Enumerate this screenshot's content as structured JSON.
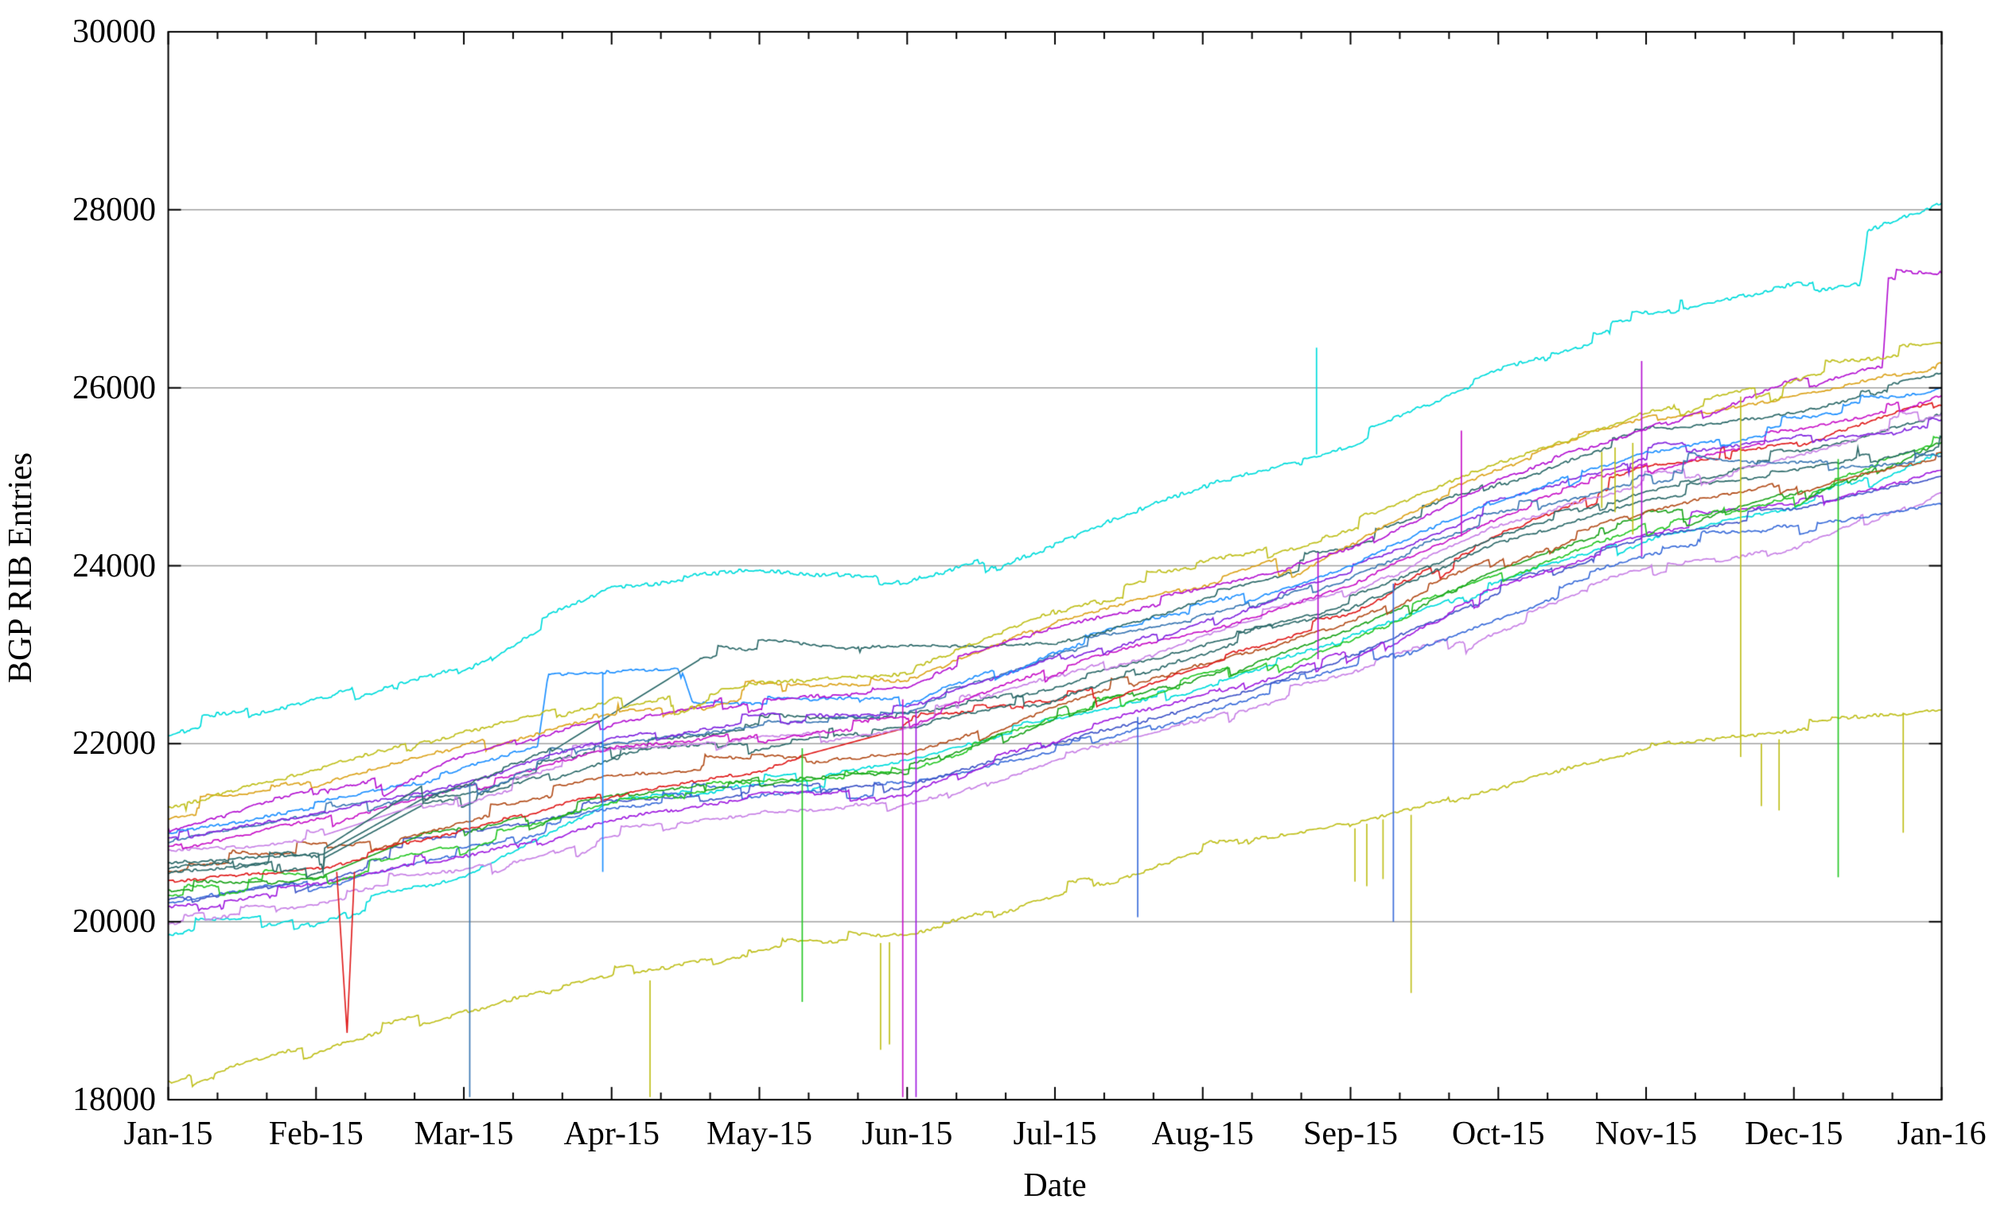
{
  "page": {
    "background": "#ffffff"
  },
  "chart_data": {
    "type": "line",
    "title": "",
    "xlabel": "Date",
    "ylabel": "BGP RIB Entries",
    "x_tick_labels": [
      "Jan-15",
      "Feb-15",
      "Mar-15",
      "Apr-15",
      "May-15",
      "Jun-15",
      "Jul-15",
      "Aug-15",
      "Sep-15",
      "Oct-15",
      "Nov-15",
      "Dec-15",
      "Jan-16"
    ],
    "y_tick_labels": [
      "18000",
      "20000",
      "22000",
      "24000",
      "26000",
      "28000",
      "30000"
    ],
    "y_tick_values": [
      18000,
      20000,
      22000,
      24000,
      26000,
      28000,
      30000
    ],
    "ylim": [
      18000,
      30000
    ],
    "xlim_months": [
      0,
      12
    ],
    "x_minor_ticks_per_month": 3,
    "grid": "horizontal",
    "grid_color": "#a0a0a0",
    "frame_color": "#000000",
    "legend": "none",
    "series": [
      {
        "name": "olive-lower",
        "color": "#c0c01e",
        "noise": 16,
        "y": [
          18200,
          18650,
          19050,
          19400,
          19700,
          19780,
          20300,
          20800,
          21150,
          21550,
          21950,
          22150,
          22350
        ]
      },
      {
        "name": "cyan-mid",
        "color": "#00dcdc",
        "noise": 14,
        "y": [
          19850,
          20100,
          20500,
          21400,
          21600,
          21800,
          22240,
          22650,
          23150,
          23800,
          24350,
          24650,
          25300
        ]
      },
      {
        "name": "plum-b",
        "color": "#c882e6",
        "noise": 14,
        "y": [
          19980,
          20180,
          20520,
          21000,
          21200,
          21300,
          21790,
          22240,
          22740,
          23400,
          23950,
          24250,
          24890
        ]
      },
      {
        "name": "blue-d",
        "color": "#3c6eda",
        "noise": 14,
        "y": [
          20200,
          20430,
          20770,
          21220,
          21420,
          21520,
          21910,
          22360,
          22860,
          23450,
          24050,
          24350,
          24700
        ]
      },
      {
        "name": "blue-c",
        "color": "#4156c8",
        "noise": 13,
        "y": [
          20250,
          20500,
          20850,
          21300,
          21500,
          21600,
          22000,
          22450,
          22950,
          23700,
          24300,
          24600,
          25000
        ]
      },
      {
        "name": "violet-b",
        "color": "#a01ee0",
        "noise": 14,
        "y": [
          20160,
          20380,
          20750,
          21200,
          21400,
          21500,
          22090,
          22540,
          23040,
          23750,
          24350,
          24650,
          25100
        ]
      },
      {
        "name": "green-b",
        "color": "#28c828",
        "noise": 14,
        "y": [
          20300,
          20480,
          20850,
          21350,
          21550,
          21650,
          22280,
          22730,
          23230,
          23930,
          24480,
          24780,
          25340
        ]
      },
      {
        "name": "green-a",
        "color": "#1ea41e",
        "noise": 13,
        "x": [
          0,
          1,
          1.05,
          1.72,
          2,
          3,
          4,
          5,
          6,
          7,
          8,
          9,
          10,
          11,
          12
        ],
        "y": [
          20350,
          20500,
          20520,
          20980,
          21020,
          21400,
          21600,
          21700,
          22330,
          22780,
          23280,
          23980,
          24530,
          24830,
          25400
        ],
        "gaps": [
          [
            1.05,
            1.72
          ]
        ]
      },
      {
        "name": "rust",
        "color": "#b4501e",
        "noise": 13,
        "y": [
          20560,
          20740,
          21120,
          21600,
          21800,
          21900,
          22450,
          22900,
          23400,
          24100,
          24650,
          24950,
          25220
        ]
      },
      {
        "name": "red",
        "color": "#e01e1e",
        "noise": 13,
        "x": [
          0,
          1,
          2,
          3,
          4,
          4.3,
          4.97,
          5,
          6,
          7,
          8,
          9,
          10,
          11,
          12
        ],
        "y": [
          20450,
          20640,
          21020,
          21500,
          21700,
          21870,
          22170,
          22200,
          22430,
          22880,
          23380,
          24300,
          25050,
          25350,
          25890
        ],
        "gaps": [
          [
            4.3,
            4.97
          ]
        ]
      },
      {
        "name": "teal-c",
        "color": "#2e6b6b",
        "noise": 13,
        "x": [
          0,
          1,
          1.05,
          1.72,
          2,
          3,
          4,
          5,
          6,
          7,
          8,
          9,
          10,
          11,
          12
        ],
        "y": [
          20550,
          20690,
          20710,
          21310,
          21350,
          21850,
          22050,
          22150,
          22510,
          22990,
          23490,
          24250,
          24750,
          25050,
          25450
        ],
        "gaps": [
          [
            1.05,
            1.72
          ]
        ]
      },
      {
        "name": "teal-b",
        "color": "#2e6b6b",
        "noise": 13,
        "x": [
          0,
          1,
          1.05,
          1.72,
          2,
          3,
          4,
          5,
          6,
          7,
          8,
          9,
          10,
          11,
          12
        ],
        "y": [
          20600,
          20740,
          20760,
          21380,
          21420,
          21920,
          22120,
          22220,
          22600,
          23080,
          23580,
          24350,
          24850,
          25150,
          25680
        ],
        "gaps": [
          [
            1.05,
            1.72
          ]
        ]
      },
      {
        "name": "plum-a",
        "color": "#c882e6",
        "noise": 14,
        "x": [
          0,
          1,
          1.05,
          1.72,
          2,
          3,
          4,
          5,
          6,
          7,
          8,
          9,
          10,
          11,
          12
        ],
        "y": [
          20800,
          20950,
          20970,
          21330,
          21370,
          21900,
          22100,
          22200,
          22780,
          23210,
          23710,
          24450,
          24900,
          25200,
          25700
        ],
        "gaps": [
          [
            1.05,
            1.72
          ]
        ]
      },
      {
        "name": "magenta-b",
        "color": "#c814c8",
        "noise": 14,
        "y": [
          20850,
          21150,
          21500,
          21950,
          22150,
          22250,
          22870,
          23300,
          23800,
          24550,
          25100,
          25400,
          25930
        ]
      },
      {
        "name": "blue-b",
        "color": "#3c78b4",
        "noise": 13,
        "y": [
          20900,
          21200,
          21550,
          22000,
          22200,
          22300,
          22990,
          23420,
          23920,
          24500,
          24950,
          25100,
          25230
        ]
      },
      {
        "name": "violet-a",
        "color": "#8228e0",
        "noise": 13,
        "y": [
          20950,
          21230,
          21560,
          22050,
          22250,
          22350,
          23000,
          23430,
          23930,
          24650,
          25200,
          25450,
          25560
        ]
      },
      {
        "name": "blue-a",
        "color": "#1e90ff",
        "noise": 14,
        "x": [
          0,
          1,
          2,
          2.5,
          2.57,
          3,
          3.45,
          3.55,
          4,
          5,
          6,
          7,
          8,
          9,
          10,
          11,
          12
        ],
        "y": [
          21000,
          21300,
          21700,
          21950,
          22750,
          22800,
          22850,
          22400,
          22450,
          22550,
          23070,
          23500,
          24000,
          24750,
          25300,
          25600,
          25950
        ]
      },
      {
        "name": "teal-a",
        "color": "#2e6b6b",
        "noise": 13,
        "x": [
          0,
          1,
          1.05,
          1.72,
          2,
          2.59,
          3.6,
          4,
          5,
          6,
          7,
          8,
          9,
          10,
          11,
          12
        ],
        "y": [
          20650,
          20800,
          20820,
          21530,
          21600,
          21910,
          22950,
          23000,
          23060,
          23120,
          23600,
          24100,
          24900,
          25450,
          25700,
          26150
        ],
        "gaps": [
          [
            1.05,
            1.72
          ],
          [
            2.59,
            3.6
          ]
        ]
      },
      {
        "name": "gold",
        "color": "#dca41e",
        "noise": 13,
        "y": [
          21150,
          21550,
          22000,
          22380,
          22570,
          22670,
          23400,
          23820,
          24320,
          25050,
          25650,
          25900,
          26250
        ]
      },
      {
        "name": "magenta-a",
        "color": "#b414d2",
        "noise": 15,
        "x": [
          0,
          1,
          2,
          3,
          4,
          5,
          6,
          7,
          8,
          9,
          10,
          11,
          11.6,
          11.64,
          12
        ],
        "y": [
          21050,
          21500,
          21950,
          22300,
          22500,
          22600,
          23260,
          23700,
          24200,
          24950,
          25550,
          26150,
          26300,
          27280,
          27250
        ]
      },
      {
        "name": "olive-upper",
        "color": "#c0c01e",
        "noise": 16,
        "y": [
          21270,
          21700,
          22150,
          22500,
          22680,
          22780,
          23480,
          23900,
          24400,
          25150,
          25750,
          26150,
          26450
        ]
      },
      {
        "name": "cyan-upper",
        "color": "#00dcdc",
        "noise": 20,
        "x": [
          0,
          1,
          2,
          3,
          4,
          5,
          6,
          7,
          8,
          9,
          10,
          11,
          11.45,
          11.5,
          12
        ],
        "y": [
          22100,
          22500,
          22900,
          23750,
          23950,
          23880,
          24350,
          24900,
          25350,
          26150,
          26650,
          27150,
          27200,
          27800,
          28100
        ]
      }
    ],
    "spikes": [
      {
        "series": "red",
        "m": 1.19,
        "v1": 20560,
        "v2": 18750,
        "type": "v"
      },
      {
        "series": "blue-b",
        "m": 2.04,
        "v1": 21560,
        "v2": 18030,
        "type": "line"
      },
      {
        "series": "blue-a",
        "m": 2.94,
        "v1": 22800,
        "v2": 20560,
        "type": "line"
      },
      {
        "series": "olive-lower",
        "m": 3.26,
        "v1": 19340,
        "v2": 18030,
        "type": "line"
      },
      {
        "series": "green-b",
        "m": 4.29,
        "v1": 21950,
        "v2": 19100,
        "type": "line"
      },
      {
        "series": "olive-lower",
        "m": 4.82,
        "v1": 19760,
        "v2": 18560,
        "type": "line"
      },
      {
        "series": "olive-lower",
        "m": 4.88,
        "v1": 19770,
        "v2": 18620,
        "type": "line"
      },
      {
        "series": "magenta-b",
        "m": 4.97,
        "v1": 22500,
        "v2": 18030,
        "type": "line"
      },
      {
        "series": "violet-b",
        "m": 5.06,
        "v1": 22380,
        "v2": 18030,
        "type": "line"
      },
      {
        "series": "blue-d",
        "m": 6.56,
        "v1": 22300,
        "v2": 20050,
        "type": "line"
      },
      {
        "series": "cyan-upper",
        "m": 7.77,
        "v1": 25250,
        "v2": 26450,
        "type": "line"
      },
      {
        "series": "magenta-a",
        "m": 7.78,
        "v1": 24150,
        "v2": 22950,
        "type": "line"
      },
      {
        "series": "olive-lower",
        "m": 8.03,
        "v1": 21050,
        "v2": 20450,
        "type": "line"
      },
      {
        "series": "olive-lower",
        "m": 8.11,
        "v1": 21100,
        "v2": 20400,
        "type": "line"
      },
      {
        "series": "olive-lower",
        "m": 8.22,
        "v1": 21150,
        "v2": 20480,
        "type": "line"
      },
      {
        "series": "blue-d",
        "m": 8.29,
        "v1": 23800,
        "v2": 20000,
        "type": "line"
      },
      {
        "series": "olive-lower",
        "m": 8.41,
        "v1": 21200,
        "v2": 19200,
        "type": "line"
      },
      {
        "series": "magenta-b",
        "m": 8.75,
        "v1": 24330,
        "v2": 25520,
        "type": "line"
      },
      {
        "series": "olive-upper",
        "m": 9.7,
        "v1": 25280,
        "v2": 24650,
        "type": "line"
      },
      {
        "series": "olive-upper",
        "m": 9.79,
        "v1": 25330,
        "v2": 24600,
        "type": "line"
      },
      {
        "series": "olive-upper",
        "m": 9.91,
        "v1": 25380,
        "v2": 24350,
        "type": "line"
      },
      {
        "series": "magenta-a",
        "m": 9.97,
        "v1": 26300,
        "v2": 24100,
        "type": "line"
      },
      {
        "series": "olive-upper",
        "m": 10.64,
        "v1": 25900,
        "v2": 21850,
        "type": "line"
      },
      {
        "series": "olive-lower",
        "m": 10.78,
        "v1": 22000,
        "v2": 21300,
        "type": "line"
      },
      {
        "series": "olive-lower",
        "m": 10.9,
        "v1": 22050,
        "v2": 21250,
        "type": "line"
      },
      {
        "series": "green-b",
        "m": 11.3,
        "v1": 25200,
        "v2": 20500,
        "type": "line"
      },
      {
        "series": "olive-lower",
        "m": 11.74,
        "v1": 22350,
        "v2": 21000,
        "type": "line"
      }
    ]
  }
}
